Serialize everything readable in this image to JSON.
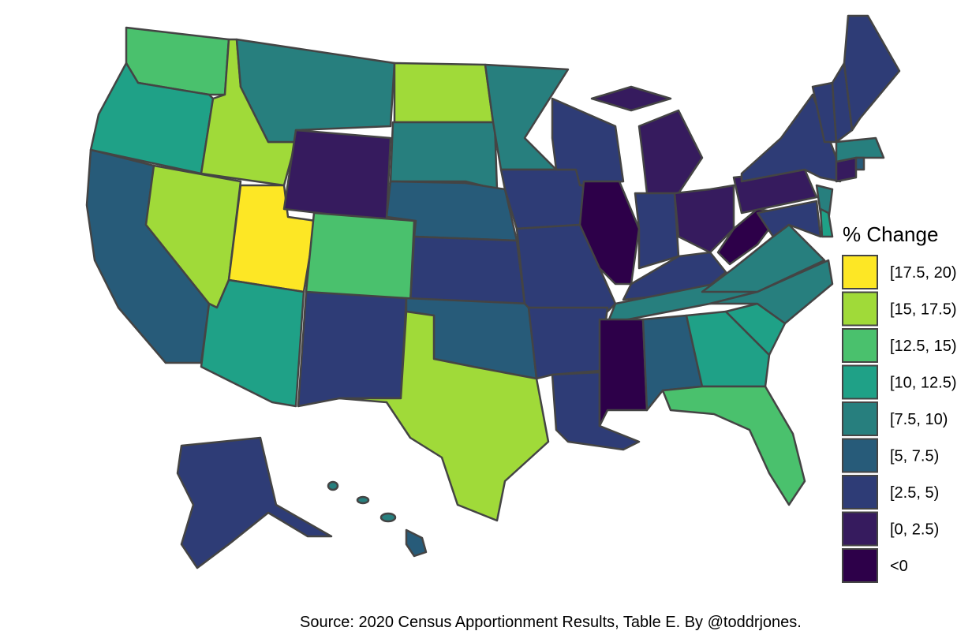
{
  "legend": {
    "title": "% Change",
    "entries": [
      {
        "label": "[17.5, 20)",
        "color": "#fde725"
      },
      {
        "label": "[15, 17.5)",
        "color": "#a0da39"
      },
      {
        "label": "[12.5, 15)",
        "color": "#4ac16d"
      },
      {
        "label": "[10, 12.5)",
        "color": "#1fa187"
      },
      {
        "label": "[7.5, 10)",
        "color": "#277f7e"
      },
      {
        "label": "[5, 7.5)",
        "color": "#275b79"
      },
      {
        "label": "[2.5, 5)",
        "color": "#2e3c76"
      },
      {
        "label": "[0, 2.5)",
        "color": "#361b5e"
      },
      {
        "label": "<0",
        "color": "#2d0049"
      }
    ]
  },
  "source": "Source: 2020 Census Apportionment Results, Table E. By @toddrjones."
}
